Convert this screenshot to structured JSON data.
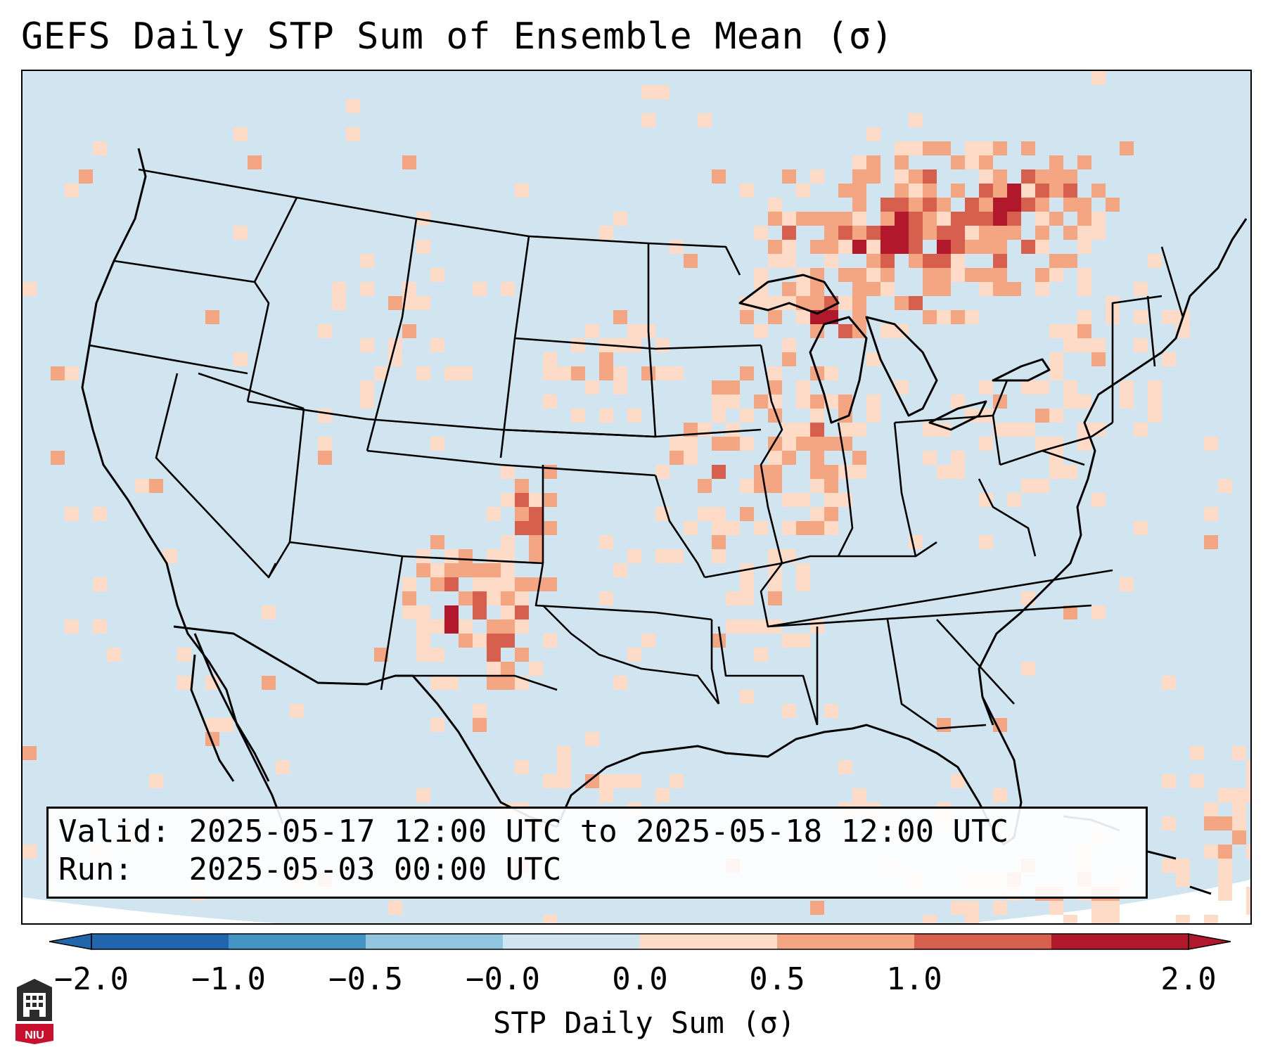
{
  "title": "GEFS Daily STP Sum of Ensemble Mean (σ)",
  "info": {
    "valid_label": "Valid:",
    "valid_value": "2025-05-17 12:00 UTC to 2025-05-18 12:00 UTC",
    "run_label": "Run:",
    "run_value": "2025-05-03 00:00 UTC"
  },
  "colorbar": {
    "label": "STP Daily Sum (σ)",
    "ticks": [
      "−2.0",
      "−1.0",
      "−0.5",
      "−0.0",
      "0.0",
      "0.5",
      "1.0",
      "2.0"
    ],
    "colors": [
      "#2166ac",
      "#4393c3",
      "#92c5de",
      "#d1e5f0",
      "#fddbc7",
      "#f4a582",
      "#d6604d",
      "#b2182b"
    ],
    "extend": "both"
  },
  "colors": {
    "background": "#d1e5f0",
    "border": "#000000",
    "light_positive": "#fddbc7",
    "moderate_positive": "#f4a582",
    "strong_positive": "#d6604d",
    "very_strong_positive": "#b2182b"
  },
  "map": {
    "projection": "lambert-conformal",
    "domain": "CONUS"
  },
  "logo": {
    "text": "NIU"
  }
}
